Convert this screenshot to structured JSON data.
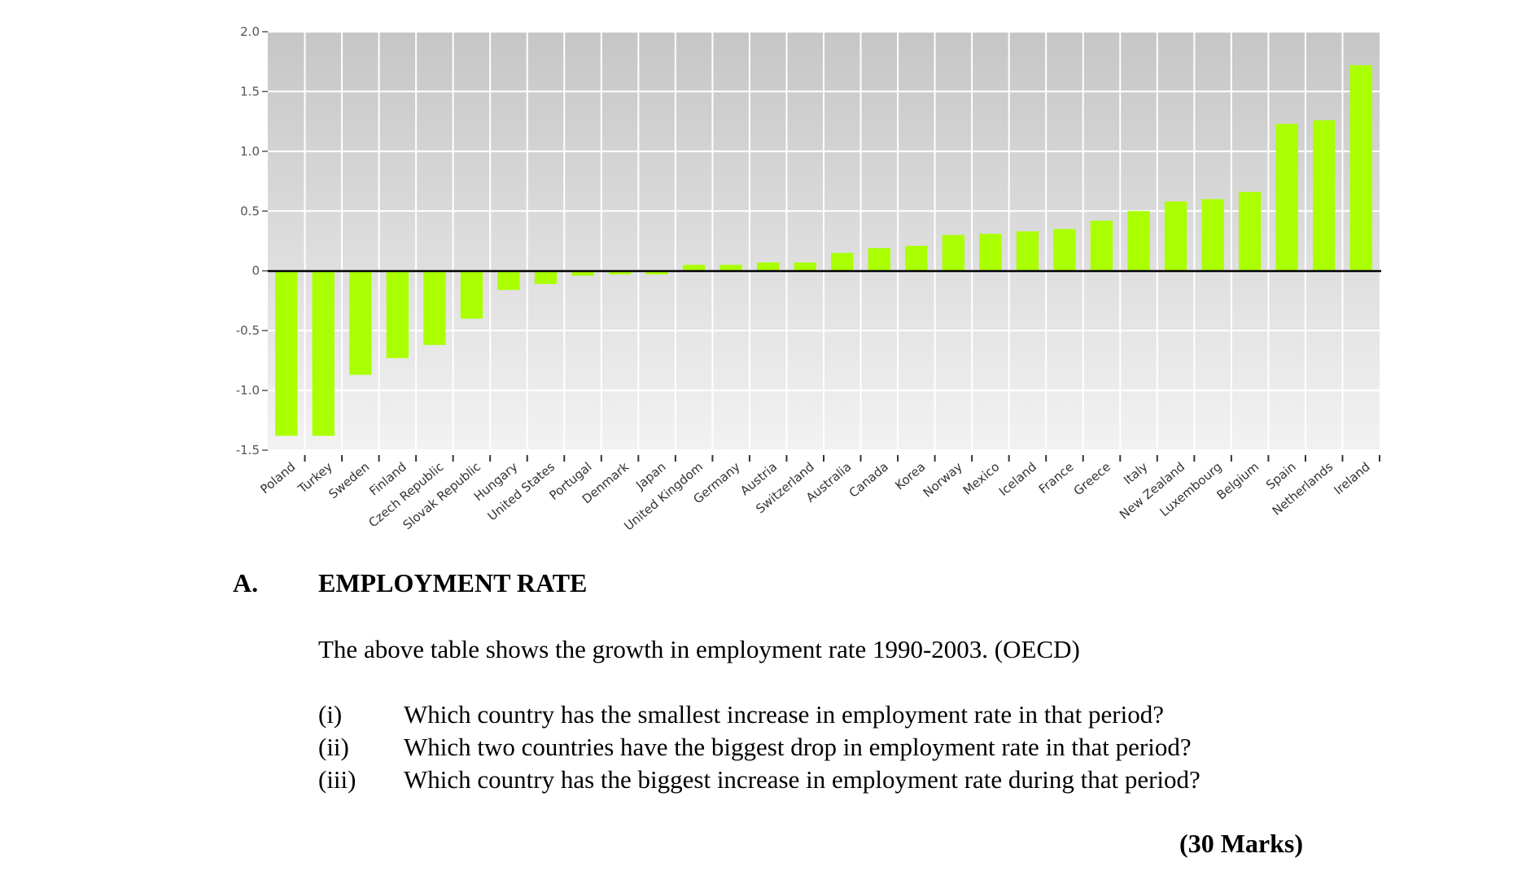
{
  "chart_data": {
    "type": "bar",
    "title": "",
    "xlabel": "",
    "ylabel": "",
    "ylim": [
      -1.5,
      2.0
    ],
    "yticks": [
      {
        "value": 2.0,
        "label": "2.0"
      },
      {
        "value": 1.5,
        "label": "1.5"
      },
      {
        "value": 1.0,
        "label": "1.0"
      },
      {
        "value": 0.5,
        "label": "0.5"
      },
      {
        "value": 0,
        "label": "0"
      },
      {
        "value": -0.5,
        "label": "-0.5"
      },
      {
        "value": -1.0,
        "label": "-1.0"
      },
      {
        "value": -1.5,
        "label": "-1.5"
      }
    ],
    "grid": true,
    "bar_color": "#aaff00",
    "categories": [
      "Poland",
      "Turkey",
      "Sweden",
      "Finland",
      "Czech Republic",
      "Slovak Republic",
      "Hungary",
      "United States",
      "Portugal",
      "Denmark",
      "Japan",
      "United Kingdom",
      "Germany",
      "Austria",
      "Switzerland",
      "Australia",
      "Canada",
      "Korea",
      "Norway",
      "Mexico",
      "Iceland",
      "France",
      "Greece",
      "Italy",
      "New Zealand",
      "Luxembourg",
      "Belgium",
      "Spain",
      "Netherlands",
      "Ireland"
    ],
    "values": [
      -1.38,
      -1.38,
      -0.87,
      -0.73,
      -0.62,
      -0.4,
      -0.16,
      -0.11,
      -0.04,
      -0.03,
      -0.03,
      0.05,
      0.05,
      0.07,
      0.07,
      0.15,
      0.19,
      0.21,
      0.3,
      0.31,
      0.33,
      0.35,
      0.42,
      0.5,
      0.58,
      0.6,
      0.66,
      1.23,
      1.26,
      1.72
    ]
  },
  "section": {
    "number": "A.",
    "title": "EMPLOYMENT RATE",
    "intro": "The above table shows the growth in employment rate 1990-2003. (OECD)",
    "questions": [
      {
        "num": "(i)",
        "text": "Which country has the smallest increase in employment rate in that period?"
      },
      {
        "num": "(ii)",
        "text": "Which two countries have the biggest drop in employment rate in that period?"
      },
      {
        "num": "(iii)",
        "text": "Which country has the biggest increase in employment rate during that period?"
      }
    ],
    "marks": "(30 Marks)"
  }
}
